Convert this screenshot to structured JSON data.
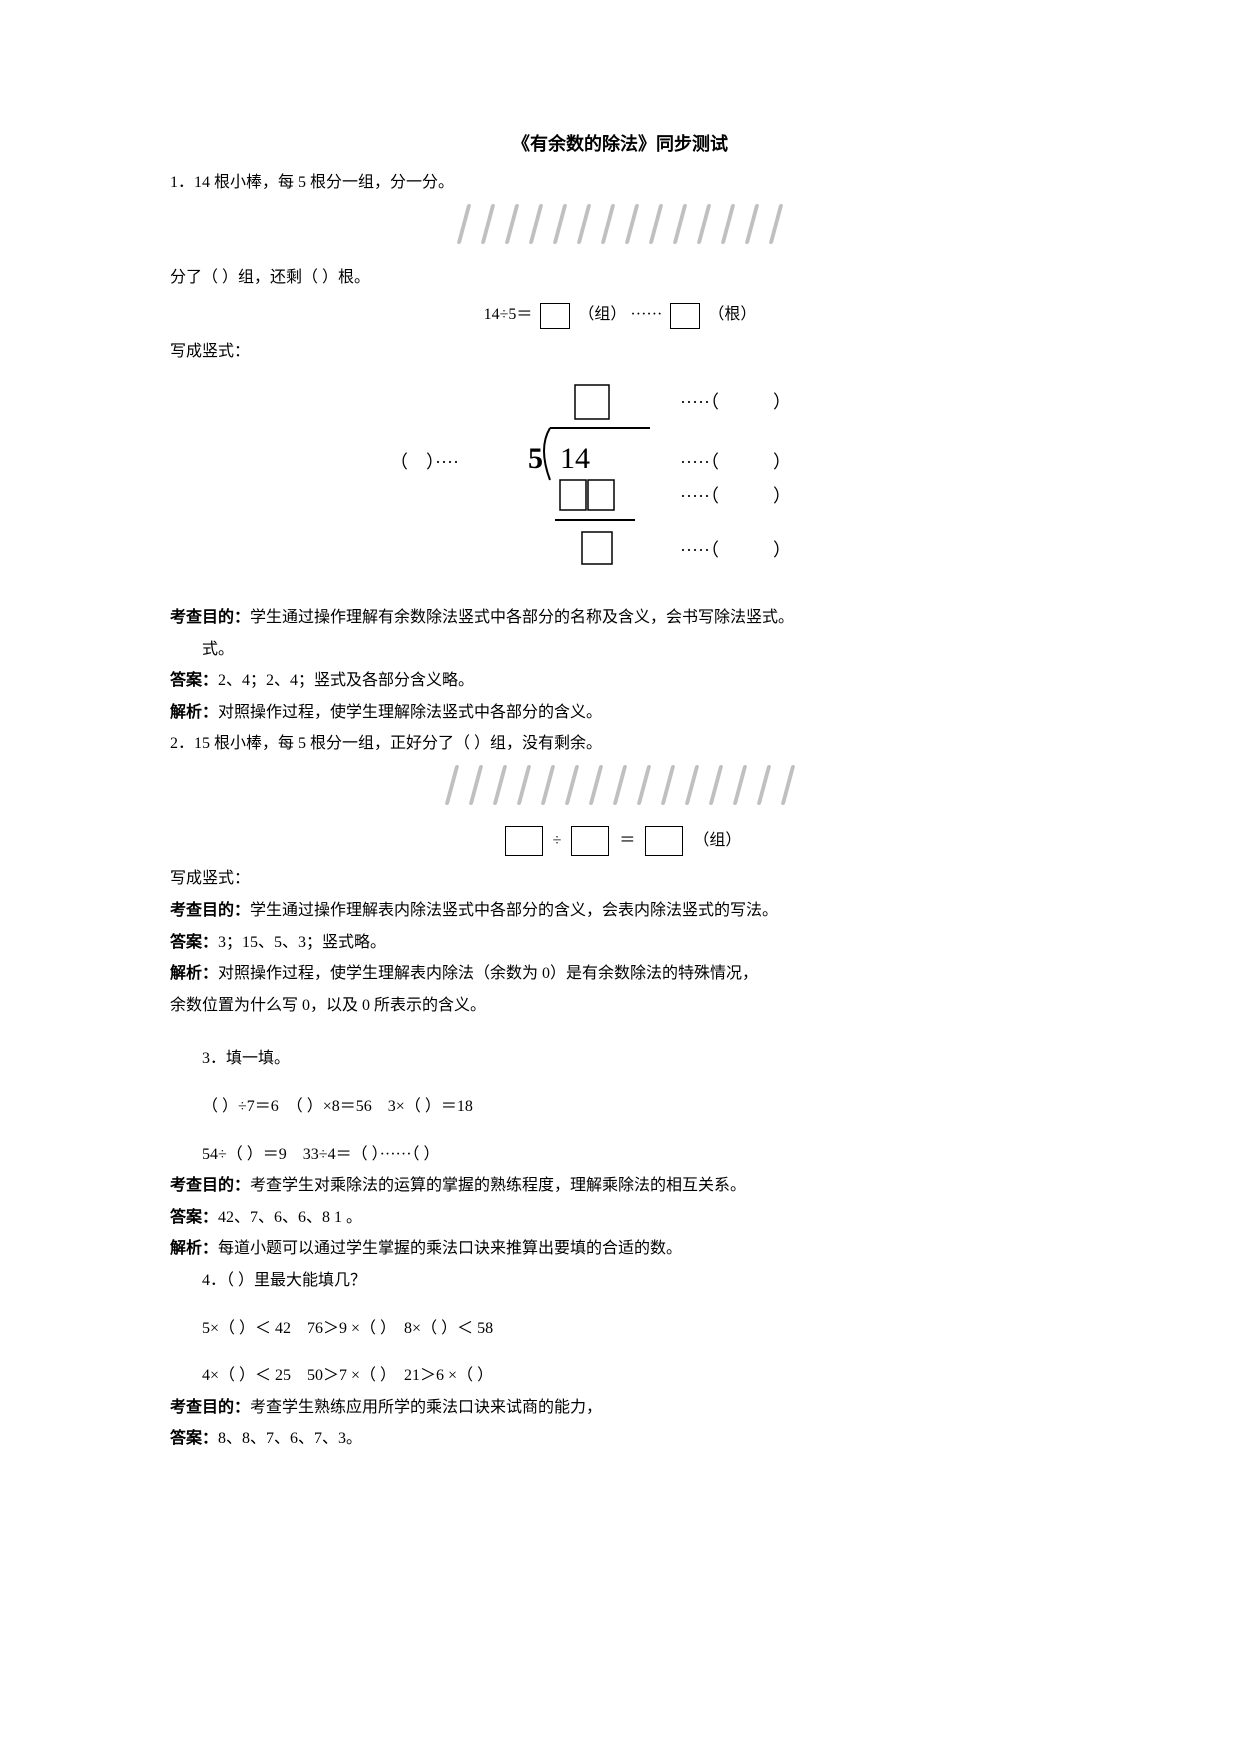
{
  "title": "《有余数的除法》同步测试",
  "q1": {
    "prompt": "1．14 根小棒，每 5 根分一组，分一分。",
    "sticks_count": 14,
    "stick_color": "#c0c0c0",
    "fill_line": "分了（ ）组，还剩（ ）根。",
    "eq_prefix": "14÷5＝",
    "eq_unit1": "（组）",
    "eq_dots": "······",
    "eq_unit2": "（根）",
    "vert_label": "写成竖式：",
    "vertical": {
      "divisor_left": "（    ）····5",
      "dividend": "14",
      "dots": "·····（          ）",
      "box_border": "#000000",
      "line_color": "#000000",
      "font_family": "Times New Roman"
    },
    "purpose_label": "考查目的：",
    "purpose": "学生通过操作理解有余数除法竖式中各部分的名称及含义，会书写除法竖式。",
    "purpose_cont": "式。",
    "answer_label": "答案：",
    "answer": "2、4；2、4；竖式及各部分含义略。",
    "analysis_label": "解析：",
    "analysis": "对照操作过程，使学生理解除法竖式中各部分的含义。"
  },
  "q2": {
    "prompt": "2．15 根小棒，每 5 根分一组，正好分了（ ）组，没有剩余。",
    "sticks_count": 15,
    "unit": "（组）",
    "vert_label": "写成竖式：",
    "purpose_label": "考查目的：",
    "purpose": "学生通过操作理解表内除法竖式中各部分的含义，会表内除法竖式的写法。",
    "answer_label": "答案：",
    "answer": "3；15、5、3；竖式略。",
    "analysis_label": "解析：",
    "analysis": "对照操作过程，使学生理解表内除法（余数为 0）是有余数除法的特殊情况，",
    "analysis2": "余数位置为什么写 0，以及 0 所表示的含义。"
  },
  "q3": {
    "prompt": "3．填一填。",
    "row1": "（ ）÷7＝6　（ ）×8＝56　3×（ ）＝18",
    "row2": "54÷（ ）＝9　33÷4＝（ ）······（ ）",
    "purpose_label": "考查目的：",
    "purpose": "考查学生对乘除法的运算的掌握的熟练程度，理解乘除法的相互关系。",
    "answer_label": "答案：",
    "answer": "42、7、6、6、8 1 。",
    "analysis_label": "解析：",
    "analysis": "每道小题可以通过学生掌握的乘法口诀来推算出要填的合适的数。"
  },
  "q4": {
    "prompt": "4．（ ）里最大能填几？",
    "row1": "5×（ ）＜ 42　76＞9 ×（ ）　8×（ ）＜ 58",
    "row2": "4×（ ）＜ 25　50＞7 ×（ ）　21＞6 ×（ ）",
    "purpose_label": "考查目的：",
    "purpose": "考查学生熟练应用所学的乘法口诀来试商的能力，",
    "answer_label": "答案：",
    "answer": "8、8、7、6、7、3。"
  }
}
